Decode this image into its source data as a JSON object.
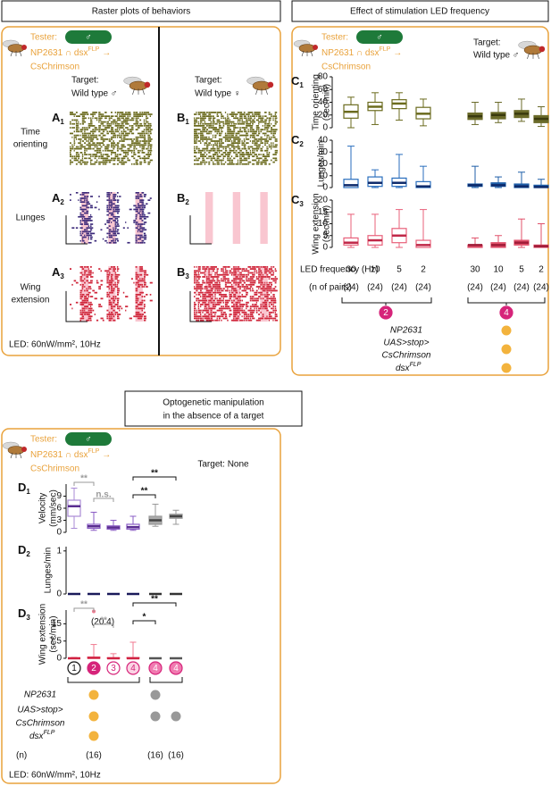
{
  "panel_a": {
    "header": "Raster plots of behaviors",
    "tester": {
      "label": "Tester:",
      "sex": "♂",
      "line1": "NP2631 ∩ dsx",
      "sup": "FLP",
      "arrow": "→",
      "line2": "CsChrimson"
    },
    "target_a": {
      "label": "Target:",
      "value": "Wild type ♂"
    },
    "target_b": {
      "label": "Target:",
      "value": "Wild type ♀"
    },
    "rows": [
      {
        "label": [
          "Time",
          "orienting"
        ],
        "a": "A",
        "b": "B",
        "sub": "1"
      },
      {
        "label": [
          "Lunges"
        ],
        "a": "A",
        "b": "B",
        "sub": "2"
      },
      {
        "label": [
          "Wing",
          "extension"
        ],
        "a": "A",
        "b": "B",
        "sub": "3"
      }
    ],
    "led": "LED: 60nW/mm², 10Hz"
  },
  "panel_c": {
    "header": "Effect of stimulation LED frequency",
    "tester": {
      "label": "Tester:",
      "sex": "♂",
      "line1": "NP2631 ∩ dsx",
      "sup": "FLP",
      "arrow": "→",
      "line2": "CsChrimson"
    },
    "target": {
      "label": "Target:",
      "value": "Wild type ♂"
    },
    "charts": [
      {
        "letter": "C",
        "sub": "1",
        "ylabel": [
          "Time orienting",
          "(sec/min)"
        ],
        "ylim": [
          0,
          80
        ],
        "yticks": [
          0,
          20,
          40,
          60,
          80
        ],
        "boxes": [
          {
            "min": 0,
            "q1": 15,
            "median": 25,
            "q3": 36,
            "max": 48,
            "color": "#6b6b1e",
            "fill": "#ffffff",
            "median_color": "#6b6b1e"
          },
          {
            "min": 5,
            "q1": 27,
            "median": 33,
            "q3": 40,
            "max": 55,
            "color": "#6b6b1e",
            "fill": "#ffffff",
            "median_color": "#6b6b1e"
          },
          {
            "min": 12,
            "q1": 30,
            "median": 38,
            "q3": 44,
            "max": 55,
            "color": "#6b6b1e",
            "fill": "#ffffff",
            "median_color": "#6b6b1e"
          },
          {
            "min": 3,
            "q1": 14,
            "median": 22,
            "q3": 32,
            "max": 45,
            "color": "#6b6b1e",
            "fill": "#ffffff",
            "median_color": "#6b6b1e"
          },
          {
            "min": 5,
            "q1": 13,
            "median": 18,
            "q3": 23,
            "max": 40,
            "color": "#6b6b2a",
            "fill": "#6b6b2a",
            "median_color": "#3a3a0e"
          },
          {
            "min": 8,
            "q1": 14,
            "median": 20,
            "q3": 24,
            "max": 40,
            "color": "#6b6b2a",
            "fill": "#6b6b2a",
            "median_color": "#3a3a0e"
          },
          {
            "min": 10,
            "q1": 16,
            "median": 22,
            "q3": 27,
            "max": 45,
            "color": "#6b6b2a",
            "fill": "#6b6b2a",
            "median_color": "#3a3a0e"
          },
          {
            "min": 2,
            "q1": 8,
            "median": 14,
            "q3": 19,
            "max": 33,
            "color": "#6b6b2a",
            "fill": "#6b6b2a",
            "median_color": "#3a3a0e"
          }
        ]
      },
      {
        "letter": "C",
        "sub": "2",
        "ylabel": [
          "Lunges/min"
        ],
        "ylim": [
          0,
          40
        ],
        "yticks": [
          0,
          10,
          20,
          30,
          40
        ],
        "boxes": [
          {
            "min": 0,
            "q1": 0,
            "median": 2,
            "q3": 7,
            "max": 35,
            "color": "#2a6ebd",
            "fill": "#ffffff",
            "median_color": "#0d2a6b"
          },
          {
            "min": 0,
            "q1": 1,
            "median": 4,
            "q3": 9,
            "max": 15,
            "color": "#2a6ebd",
            "fill": "#ffffff",
            "median_color": "#0d2a6b"
          },
          {
            "min": 0,
            "q1": 1,
            "median": 4,
            "q3": 8,
            "max": 28,
            "color": "#2a6ebd",
            "fill": "#ffffff",
            "median_color": "#0d2a6b"
          },
          {
            "min": 0,
            "q1": 0,
            "median": 1,
            "q3": 5,
            "max": 18,
            "color": "#2a6ebd",
            "fill": "#ffffff",
            "median_color": "#0d2a6b"
          },
          {
            "min": 0,
            "q1": 1,
            "median": 2,
            "q3": 3,
            "max": 18,
            "color": "#1f5fa8",
            "fill": "#1f5fa8",
            "median_color": "#0d2a6b"
          },
          {
            "min": 0,
            "q1": 1,
            "median": 2,
            "q3": 4,
            "max": 9,
            "color": "#1f5fa8",
            "fill": "#1f5fa8",
            "median_color": "#0d2a6b"
          },
          {
            "min": 0,
            "q1": 0,
            "median": 1,
            "q3": 3,
            "max": 13,
            "color": "#1f5fa8",
            "fill": "#1f5fa8",
            "median_color": "#0d2a6b"
          },
          {
            "min": 0,
            "q1": 0,
            "median": 0.5,
            "q3": 2,
            "max": 7,
            "color": "#1f5fa8",
            "fill": "#1f5fa8",
            "median_color": "#0d2a6b"
          }
        ]
      },
      {
        "letter": "C",
        "sub": "3",
        "ylabel": [
          "Wing extension",
          "(sec/min)"
        ],
        "ylim": [
          0,
          20
        ],
        "yticks": [
          0,
          5,
          10,
          15,
          20
        ],
        "boxes": [
          {
            "min": 0,
            "q1": 1,
            "median": 2,
            "q3": 4,
            "max": 14,
            "color": "#e8607a",
            "fill": "#ffffff",
            "median_color": "#c02848"
          },
          {
            "min": 0,
            "q1": 1,
            "median": 3,
            "q3": 5,
            "max": 14,
            "color": "#e8607a",
            "fill": "#ffffff",
            "median_color": "#c02848"
          },
          {
            "min": 0,
            "q1": 2,
            "median": 5,
            "q3": 8,
            "max": 16,
            "color": "#e8607a",
            "fill": "#ffffff",
            "median_color": "#c02848"
          },
          {
            "min": 0,
            "q1": 0,
            "median": 1,
            "q3": 3,
            "max": 16,
            "color": "#e8607a",
            "fill": "#ffffff",
            "median_color": "#c02848"
          },
          {
            "min": 0,
            "q1": 0,
            "median": 1,
            "q3": 1,
            "max": 4,
            "color": "#e0506a",
            "fill": "#e0506a",
            "median_color": "#a01c38"
          },
          {
            "min": 0,
            "q1": 0,
            "median": 1,
            "q3": 2,
            "max": 5,
            "color": "#e0506a",
            "fill": "#e0506a",
            "median_color": "#a01c38"
          },
          {
            "min": 0,
            "q1": 1,
            "median": 2,
            "q3": 3,
            "max": 12,
            "color": "#e0506a",
            "fill": "#e0506a",
            "median_color": "#a01c38"
          },
          {
            "min": 0,
            "q1": 0,
            "median": 0.5,
            "q3": 1,
            "max": 10,
            "color": "#e0506a",
            "fill": "#e0506a",
            "median_color": "#a01c38"
          }
        ]
      }
    ],
    "freq_label": "LED frequency (Hz)",
    "frequencies": [
      "30",
      "10",
      "5",
      "2",
      "30",
      "10",
      "5",
      "2"
    ],
    "n_label": "(n of pairs)",
    "n": [
      "(24)",
      "(24)",
      "(24)",
      "(24)",
      "(24)",
      "(24)",
      "(24)",
      "(24)"
    ],
    "groups": [
      "2",
      "4"
    ],
    "genotype": {
      "np": "NP2631",
      "uas": "UAS>stop>",
      "cs": "CsChrimson",
      "dsx": "dsx",
      "sup": "FLP"
    }
  },
  "panel_d": {
    "header": [
      "Optogenetic manipulation",
      "in the absence of a target"
    ],
    "tester": {
      "label": "Tester:",
      "sex": "♂",
      "line1": "NP2631 ∩ dsx",
      "sup": "FLP",
      "arrow": "→",
      "line2": "CsChrimson"
    },
    "target": "Target: None",
    "charts": [
      {
        "letter": "D",
        "sub": "1",
        "ylabel": [
          "Velocity",
          "(mm/sec)"
        ],
        "ylim": [
          0,
          12
        ],
        "yticks": [
          0,
          3,
          6,
          9
        ],
        "boxes": [
          {
            "min": 1,
            "q1": 4,
            "median": 6.5,
            "q3": 8,
            "max": 11,
            "color": "#a98ad6",
            "fill": "#ffffff",
            "median_color": "#5a2d91"
          },
          {
            "min": 0.5,
            "q1": 1,
            "median": 1.5,
            "q3": 2,
            "max": 5,
            "color": "#8a5cc4",
            "fill": "#ffffff",
            "median_color": "#5a2d91"
          },
          {
            "min": 0.5,
            "q1": 0.8,
            "median": 1.2,
            "q3": 1.6,
            "max": 3,
            "color": "#8a5cc4",
            "fill": "#ffffff",
            "median_color": "#5a2d91"
          },
          {
            "min": 0.5,
            "q1": 0.8,
            "median": 1.3,
            "q3": 2,
            "max": 4,
            "color": "#8a5cc4",
            "fill": "#ffffff",
            "median_color": "#5a2d91"
          },
          {
            "min": 1.5,
            "q1": 2,
            "median": 3,
            "q3": 4,
            "max": 7,
            "color": "#999999",
            "fill": "#aaaaaa",
            "median_color": "#444444"
          },
          {
            "min": 2,
            "q1": 3.5,
            "median": 4,
            "q3": 4.5,
            "max": 5.5,
            "color": "#999999",
            "fill": "#aaaaaa",
            "median_color": "#444444"
          }
        ],
        "annotations": [
          {
            "text": "**",
            "groups": [
              0,
              1
            ],
            "color": "#999999"
          },
          {
            "text": "n.s.",
            "groups": [
              1,
              2
            ],
            "color": "#999999"
          },
          {
            "text": "**",
            "groups": [
              3,
              4
            ],
            "color": "#111111"
          },
          {
            "text": "**",
            "groups": [
              3,
              5
            ],
            "color": "#111111"
          }
        ]
      },
      {
        "letter": "D",
        "sub": "2",
        "ylabel": [
          "Lunges/min"
        ],
        "ylim": [
          0,
          1.1
        ],
        "yticks": [
          0,
          1
        ],
        "boxes": [
          {
            "min": 0,
            "q1": 0,
            "median": 0,
            "q3": 0,
            "max": 0,
            "color": "#1a1a5a",
            "fill": "#1a1a5a",
            "median_color": "#1a1a5a"
          },
          {
            "min": 0,
            "q1": 0,
            "median": 0,
            "q3": 0,
            "max": 0,
            "color": "#1a1a5a",
            "fill": "#1a1a5a",
            "median_color": "#1a1a5a"
          },
          {
            "min": 0,
            "q1": 0,
            "median": 0,
            "q3": 0,
            "max": 0,
            "color": "#1a1a5a",
            "fill": "#1a1a5a",
            "median_color": "#1a1a5a"
          },
          {
            "min": 0,
            "q1": 0,
            "median": 0,
            "q3": 0,
            "max": 0,
            "color": "#1a1a5a",
            "fill": "#1a1a5a",
            "median_color": "#1a1a5a"
          },
          {
            "min": 0,
            "q1": 0,
            "median": 0,
            "q3": 0,
            "max": 0,
            "color": "#333333",
            "fill": "#333333",
            "median_color": "#333333"
          },
          {
            "min": 0,
            "q1": 0,
            "median": 0,
            "q3": 0,
            "max": 0,
            "color": "#333333",
            "fill": "#333333",
            "median_color": "#333333"
          }
        ],
        "annotations": []
      },
      {
        "letter": "D",
        "sub": "3",
        "ylabel": [
          "Wing extension",
          "(sec/min)"
        ],
        "ylim": [
          0,
          21
        ],
        "yticks": [
          0,
          {
            "value": 7.5,
            "label": "7.5"
          },
          15
        ],
        "boxes": [
          {
            "min": 0,
            "q1": 0,
            "median": 0,
            "q3": 0,
            "max": 0.3,
            "color": "#d02040",
            "fill": "#d02040",
            "median_color": "#d02040"
          },
          {
            "min": 0,
            "q1": 0,
            "median": 0.2,
            "q3": 0.5,
            "max": 6,
            "color": "#f07a90",
            "fill": "#ffffff",
            "median_color": "#d02040",
            "outlier": 20.4,
            "outlier_label": "(20.4)"
          },
          {
            "min": 0,
            "q1": 0,
            "median": 0,
            "q3": 0.2,
            "max": 2,
            "color": "#f07a90",
            "fill": "#ffffff",
            "median_color": "#d02040"
          },
          {
            "min": 0,
            "q1": 0,
            "median": 0,
            "q3": 0.3,
            "max": 7,
            "color": "#f07a90",
            "fill": "#ffffff",
            "median_color": "#d02040"
          },
          {
            "min": 0,
            "q1": 0,
            "median": 0,
            "q3": 0,
            "max": 0,
            "color": "#888888",
            "fill": "#888888",
            "median_color": "#555555"
          },
          {
            "min": 0,
            "q1": 0,
            "median": 0,
            "q3": 0,
            "max": 0,
            "color": "#888888",
            "fill": "#888888",
            "median_color": "#555555"
          }
        ],
        "annotations": [
          {
            "text": "**",
            "groups": [
              0,
              1
            ],
            "color": "#999999"
          },
          {
            "text": "**",
            "groups": [
              1,
              2
            ],
            "color": "#999999"
          },
          {
            "text": "*",
            "groups": [
              3,
              4
            ],
            "color": "#111111"
          },
          {
            "text": "**",
            "groups": [
              3,
              5
            ],
            "color": "#111111"
          }
        ]
      }
    ],
    "groups": [
      "1",
      "2",
      "3",
      "4",
      "4",
      "4"
    ],
    "genotype": {
      "np": "NP2631",
      "uas": "UAS>stop>",
      "cs": "CsChrimson",
      "dsx": "dsx",
      "sup": "FLP"
    },
    "n_label": "(n)",
    "n": [
      "(16)",
      "(16)",
      "(16)"
    ],
    "led": "LED: 60nW/mm², 10Hz"
  }
}
